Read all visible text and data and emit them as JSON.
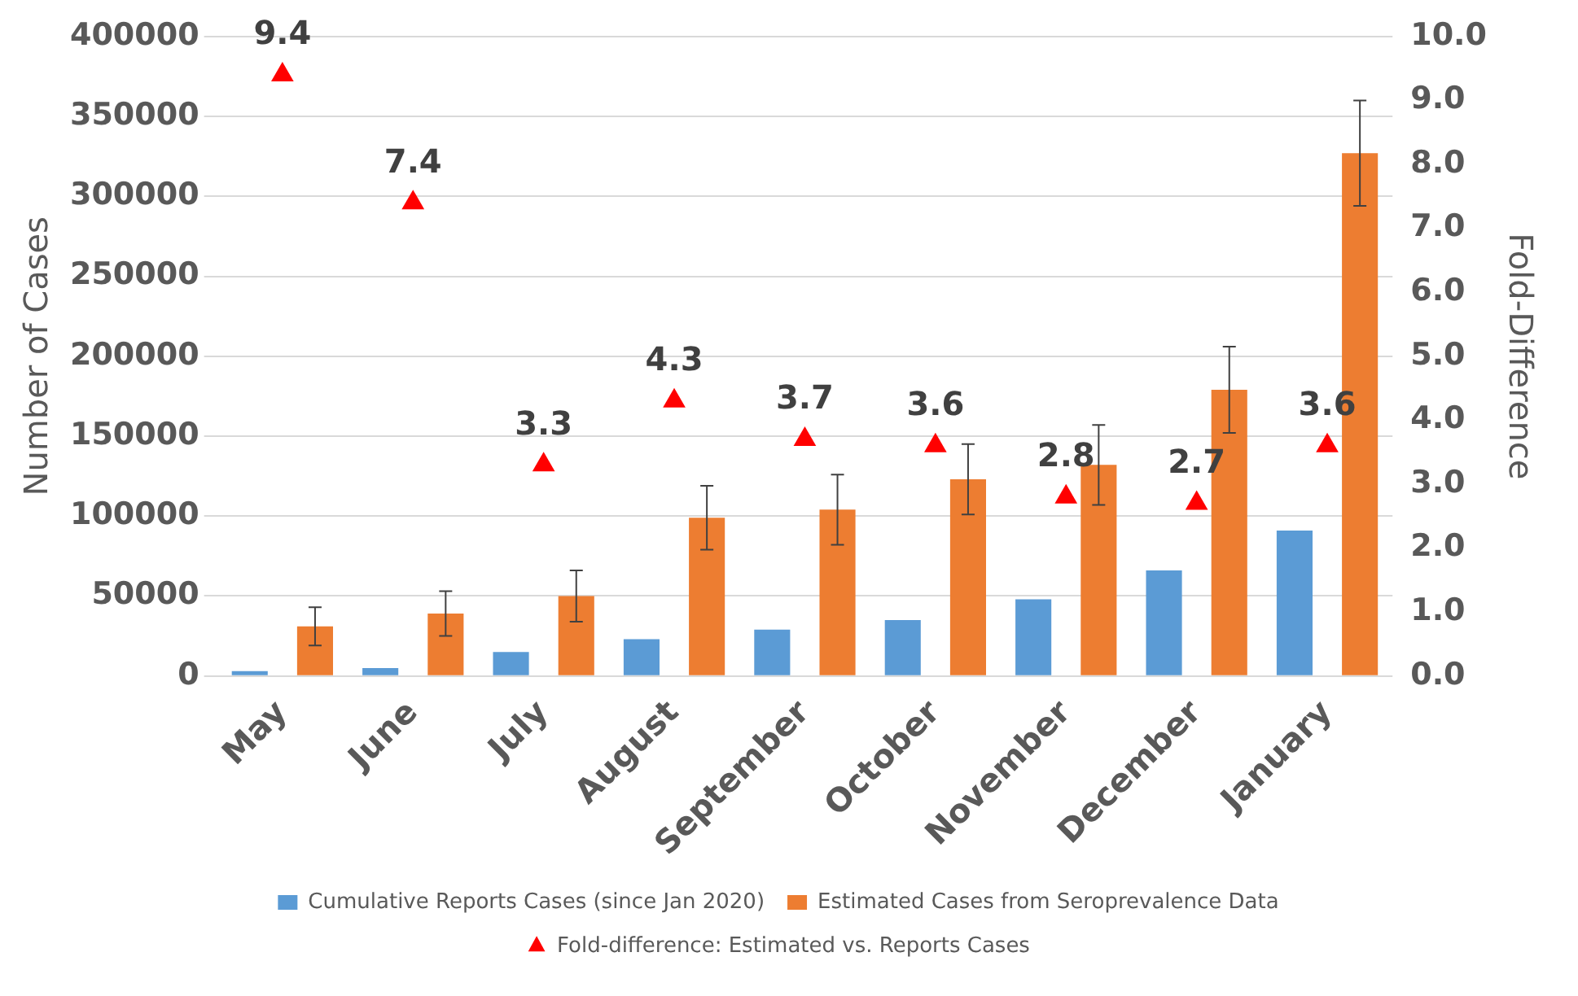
{
  "chart_data": {
    "type": "bar",
    "ylabel": "Number of Cases",
    "y2label": "Fold-Difference",
    "categories": [
      "May",
      "June",
      "July",
      "August",
      "September",
      "October",
      "November",
      "December",
      "January"
    ],
    "series": [
      {
        "name": "Cumulative Reports Cases (since Jan 2020)",
        "color": "#5b9bd5",
        "values": [
          3000,
          5000,
          15000,
          23000,
          29000,
          35000,
          48000,
          66000,
          91000
        ]
      },
      {
        "name": "Estimated Cases from Seroprevalence Data",
        "color": "#ed7d31",
        "values": [
          31000,
          39000,
          50000,
          99000,
          104000,
          123000,
          132000,
          179000,
          327000
        ],
        "errors": [
          12000,
          14000,
          16000,
          20000,
          22000,
          22000,
          25000,
          27000,
          33000
        ]
      },
      {
        "name": "Fold-difference: Estimated vs. Reports Cases",
        "type": "scatter",
        "axis": "y2",
        "color": "#ff0000",
        "marker": "triangle",
        "x": [
          "May",
          "June",
          "July",
          "August",
          "September",
          "October",
          "November",
          "December",
          "January"
        ],
        "values": [
          9.4,
          7.4,
          3.3,
          4.3,
          3.7,
          3.6,
          2.8,
          2.7,
          3.6
        ],
        "value_labels": [
          "9.4",
          "7.4",
          "3.3",
          "4.3",
          "3.7",
          "3.6",
          "2.8",
          "2.7",
          "3.6"
        ]
      }
    ],
    "ylim": [
      0,
      400000
    ],
    "yticks": [
      0,
      50000,
      100000,
      150000,
      200000,
      250000,
      300000,
      350000,
      400000
    ],
    "y2lim": [
      0,
      10
    ],
    "y2ticks": [
      {
        "value": 0,
        "label": "0.0"
      },
      {
        "value": 1,
        "label": "1.0"
      },
      {
        "value": 2,
        "label": "2.0"
      },
      {
        "value": 3,
        "label": "3.0"
      },
      {
        "value": 4,
        "label": "4.0"
      },
      {
        "value": 5,
        "label": "5.0"
      },
      {
        "value": 6,
        "label": "6.0"
      },
      {
        "value": 7,
        "label": "7.0"
      },
      {
        "value": 8,
        "label": "8.0"
      },
      {
        "value": 9,
        "label": "9.0"
      },
      {
        "value": 10,
        "label": "10.0"
      }
    ],
    "grid": "y",
    "legend": "bottom"
  }
}
